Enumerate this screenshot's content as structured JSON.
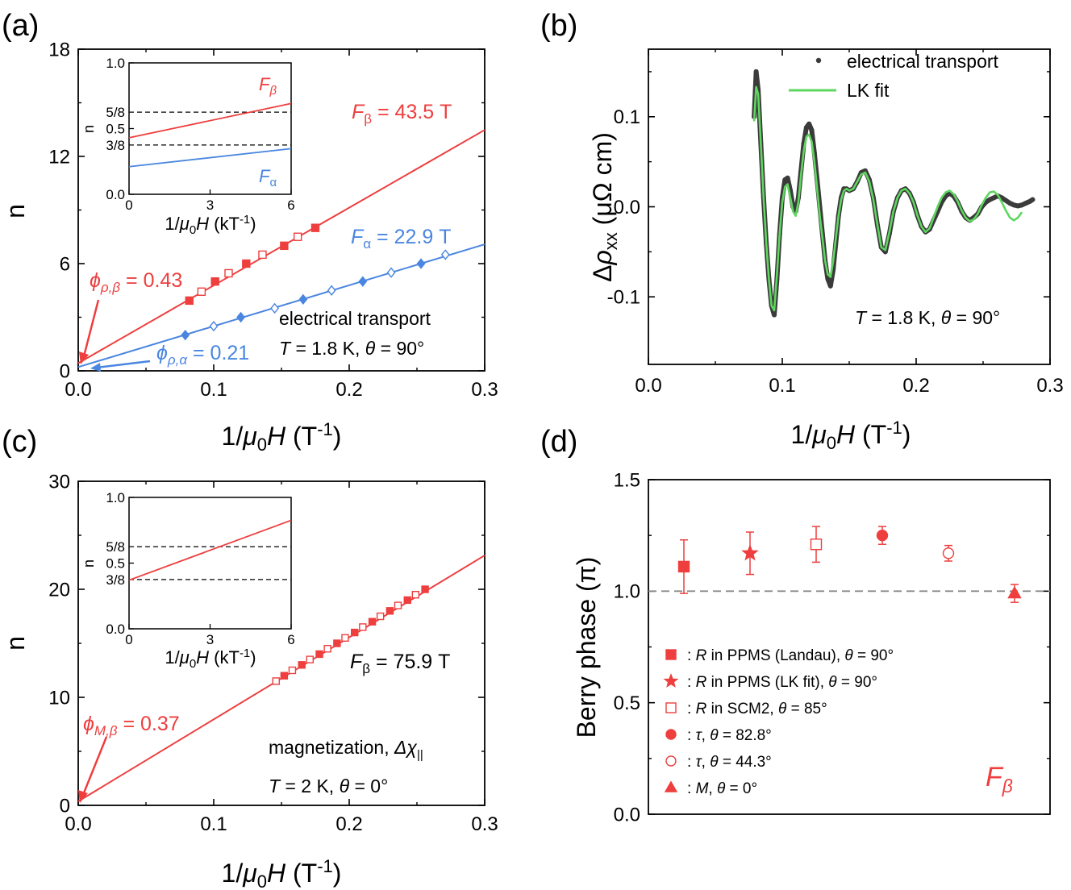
{
  "colors": {
    "red": "#ee3e3e",
    "blue": "#4a86e0",
    "green": "#5fd65f",
    "dark": "#3b3b3b",
    "axis": "#000000",
    "gray_dash": "#8a8a8a"
  },
  "chart_data": [
    {
      "panel_label": "(a)",
      "type": "scatter",
      "xlabel_prefix": "1/",
      "xlabel_mu": "μ",
      "xlabel_sub": "0",
      "xlabel_H": "H",
      "xlabel_unit": " (T",
      "xlabel_exp": "-1",
      "xlabel_close": ")",
      "ylabel": "n",
      "xlim": [
        0,
        0.3
      ],
      "ylim": [
        0,
        18
      ],
      "xticks": [
        "0.0",
        "0.1",
        "0.2",
        "0.3"
      ],
      "xtick_values": [
        0,
        0.1,
        0.2,
        0.3
      ],
      "yticks": [
        "0",
        "6",
        "12",
        "18"
      ],
      "ytick_values": [
        0,
        6,
        12,
        18
      ],
      "series": [
        {
          "name": "F_beta",
          "color": "#ee3e3e",
          "marker": "square",
          "points": [
            [
              0.082,
              3.93,
              true
            ],
            [
              0.091,
              4.43,
              false
            ],
            [
              0.101,
              5.0,
              true
            ],
            [
              0.111,
              5.46,
              false
            ],
            [
              0.124,
              6.0,
              true
            ],
            [
              0.136,
              6.5,
              false
            ],
            [
              0.152,
              7.0,
              true
            ],
            [
              0.162,
              7.5,
              false
            ],
            [
              0.175,
              8.0,
              true
            ]
          ],
          "fit": {
            "intercept": 0.43,
            "slope": 43.5
          }
        },
        {
          "name": "F_alpha",
          "color": "#4a86e0",
          "marker": "diamond",
          "points": [
            [
              0.079,
              2.0,
              true
            ],
            [
              0.1,
              2.5,
              false
            ],
            [
              0.12,
              3.0,
              true
            ],
            [
              0.145,
              3.5,
              false
            ],
            [
              0.166,
              4.0,
              true
            ],
            [
              0.187,
              4.5,
              false
            ],
            [
              0.21,
              5.0,
              true
            ],
            [
              0.231,
              5.5,
              false
            ],
            [
              0.253,
              6.0,
              true
            ],
            [
              0.271,
              6.5,
              false
            ]
          ],
          "fit": {
            "intercept": 0.21,
            "slope": 22.9
          }
        }
      ],
      "ann_fbeta": {
        "F": "F",
        "sub": "β",
        "rest": " = 43.5 T"
      },
      "ann_falpha": {
        "F": "F",
        "sub": "α",
        "rest": " = 22.9 T"
      },
      "ann_phibeta": {
        "phi": "ϕ",
        "sub": "ρ,β",
        "rest": " = 0.43"
      },
      "ann_phialpha": {
        "phi": "ϕ",
        "sub": "ρ,α",
        "rest": " = 0.21"
      },
      "ann_cond1": "electrical transport",
      "ann_cond2": {
        "T": "T",
        "mid": " = 1.8 K,  ",
        "theta": "θ",
        "end": " = 90°"
      },
      "inset": {
        "xlim": [
          0,
          6
        ],
        "ylim": [
          0,
          1
        ],
        "xticks": [
          "0",
          "3",
          "6"
        ],
        "xtick_values": [
          0,
          3,
          6
        ],
        "yticks": [
          "0.0",
          "0.5",
          "1.0"
        ],
        "ytick_values": [
          0,
          0.5,
          1.0
        ],
        "hlines": [
          {
            "label": "5/8",
            "value": 0.625
          },
          {
            "label": "3/8",
            "value": 0.375
          }
        ],
        "ylabel": "n",
        "xlabel_prefix": "1/",
        "xlabel_mu": "μ",
        "xlabel_sub": "0",
        "xlabel_H": "H",
        "xlabel_unit": " (kT",
        "xlabel_exp": "-1",
        "xlabel_close": ")",
        "lines": [
          {
            "name": "F_beta",
            "color": "#ee3e3e",
            "intercept": 0.43,
            "slope": 0.0435,
            "label_F": "F",
            "label_sub": "β"
          },
          {
            "name": "F_alpha",
            "color": "#4a86e0",
            "intercept": 0.21,
            "slope": 0.0229,
            "label_F": "F",
            "label_sub": "α"
          }
        ]
      }
    },
    {
      "panel_label": "(b)",
      "type": "line",
      "xlabel_prefix": "1/",
      "xlabel_mu": "μ",
      "xlabel_sub": "0",
      "xlabel_H": "H",
      "xlabel_unit": " (T",
      "xlabel_exp": "-1",
      "xlabel_close": ")",
      "ylabel_delta": "Δ",
      "ylabel_rho": "ρ",
      "ylabel_sub": "xx",
      "ylabel_unit": " (μΩ cm)",
      "xlim": [
        0,
        0.3
      ],
      "ylim": [
        -0.175,
        0.175
      ],
      "xticks": [
        "0.0",
        "0.1",
        "0.2",
        "0.3"
      ],
      "xtick_values": [
        0,
        0.1,
        0.2,
        0.3
      ],
      "yticks": [
        "-0.1",
        "0.0",
        "0.1"
      ],
      "ytick_values": [
        -0.1,
        0,
        0.1
      ],
      "series": [
        {
          "name": "electrical transport",
          "color": "#3b3b3b",
          "x": [
            0.079,
            0.0805,
            0.082,
            0.084,
            0.086,
            0.088,
            0.09,
            0.092,
            0.094,
            0.096,
            0.098,
            0.1,
            0.102,
            0.104,
            0.106,
            0.108,
            0.11,
            0.112,
            0.114,
            0.116,
            0.118,
            0.12,
            0.122,
            0.124,
            0.126,
            0.128,
            0.13,
            0.132,
            0.134,
            0.136,
            0.138,
            0.14,
            0.142,
            0.144,
            0.146,
            0.148,
            0.15,
            0.153,
            0.156,
            0.159,
            0.162,
            0.165,
            0.168,
            0.171,
            0.174,
            0.177,
            0.18,
            0.183,
            0.186,
            0.189,
            0.192,
            0.195,
            0.198,
            0.201,
            0.204,
            0.207,
            0.21,
            0.213,
            0.216,
            0.219,
            0.222,
            0.225,
            0.228,
            0.231,
            0.234,
            0.237,
            0.24,
            0.243,
            0.246,
            0.249,
            0.252,
            0.255,
            0.258,
            0.261,
            0.264,
            0.267,
            0.27,
            0.273,
            0.276,
            0.279,
            0.282,
            0.285,
            0.287
          ],
          "y": [
            0.1,
            0.15,
            0.13,
            0.07,
            0.01,
            -0.04,
            -0.08,
            -0.11,
            -0.12,
            -0.08,
            -0.03,
            0.01,
            0.03,
            0.032,
            0.018,
            0.0,
            -0.005,
            0.01,
            0.04,
            0.07,
            0.088,
            0.092,
            0.085,
            0.06,
            0.03,
            0.0,
            -0.03,
            -0.06,
            -0.08,
            -0.088,
            -0.07,
            -0.04,
            -0.01,
            0.01,
            0.02,
            0.02,
            0.018,
            0.02,
            0.028,
            0.038,
            0.04,
            0.03,
            0.01,
            -0.02,
            -0.045,
            -0.05,
            -0.03,
            -0.005,
            0.01,
            0.018,
            0.02,
            0.015,
            0.005,
            -0.01,
            -0.022,
            -0.028,
            -0.025,
            -0.015,
            -0.005,
            0.005,
            0.012,
            0.015,
            0.012,
            0.005,
            -0.005,
            -0.012,
            -0.015,
            -0.012,
            -0.008,
            0.0,
            0.005,
            0.008,
            0.01,
            0.012,
            0.01,
            0.007,
            0.004,
            0.002,
            0.001,
            0.002,
            0.004,
            0.006,
            0.008
          ]
        },
        {
          "name": "LK fit",
          "color": "#5fd65f",
          "x": [
            0.079,
            0.0805,
            0.082,
            0.084,
            0.086,
            0.088,
            0.09,
            0.092,
            0.094,
            0.096,
            0.098,
            0.1,
            0.102,
            0.104,
            0.106,
            0.108,
            0.11,
            0.112,
            0.114,
            0.116,
            0.118,
            0.12,
            0.122,
            0.124,
            0.126,
            0.128,
            0.13,
            0.132,
            0.134,
            0.136,
            0.138,
            0.14,
            0.142,
            0.144,
            0.146,
            0.148,
            0.15,
            0.153,
            0.156,
            0.159,
            0.162,
            0.165,
            0.168,
            0.171,
            0.174,
            0.177,
            0.18,
            0.183,
            0.186,
            0.189,
            0.192,
            0.195,
            0.198,
            0.201,
            0.204,
            0.207,
            0.21,
            0.213,
            0.216,
            0.219,
            0.222,
            0.225,
            0.228,
            0.231,
            0.234,
            0.237,
            0.24,
            0.243,
            0.246,
            0.249,
            0.252,
            0.255,
            0.258,
            0.261,
            0.264,
            0.267,
            0.27,
            0.273,
            0.276,
            0.279
          ],
          "y": [
            0.095,
            0.133,
            0.125,
            0.07,
            0.01,
            -0.04,
            -0.08,
            -0.11,
            -0.115,
            -0.075,
            -0.03,
            0.005,
            0.022,
            0.025,
            0.01,
            -0.005,
            -0.01,
            0.005,
            0.035,
            0.062,
            0.078,
            0.08,
            0.072,
            0.05,
            0.02,
            -0.01,
            -0.035,
            -0.06,
            -0.075,
            -0.078,
            -0.06,
            -0.035,
            -0.01,
            0.008,
            0.018,
            0.02,
            0.018,
            0.02,
            0.028,
            0.036,
            0.038,
            0.028,
            0.008,
            -0.02,
            -0.045,
            -0.048,
            -0.028,
            -0.005,
            0.01,
            0.018,
            0.02,
            0.015,
            0.005,
            -0.01,
            -0.022,
            -0.028,
            -0.024,
            -0.012,
            0.0,
            0.01,
            0.016,
            0.018,
            0.014,
            0.006,
            -0.004,
            -0.012,
            -0.016,
            -0.014,
            -0.008,
            0.002,
            0.01,
            0.016,
            0.017,
            0.013,
            0.005,
            -0.004,
            -0.012,
            -0.015,
            -0.012,
            -0.006
          ]
        }
      ],
      "legend": [
        {
          "label": "electrical transport",
          "style": "dot"
        },
        {
          "label": "LK fit",
          "style": "line"
        }
      ],
      "ann_cond": {
        "T": "T",
        "mid": " = 1.8 K,  ",
        "theta": "θ",
        "end": " = 90°"
      }
    },
    {
      "panel_label": "(c)",
      "type": "scatter",
      "xlabel_prefix": "1/",
      "xlabel_mu": "μ",
      "xlabel_sub": "0",
      "xlabel_H": "H",
      "xlabel_unit": " (T",
      "xlabel_exp": "-1",
      "xlabel_close": ")",
      "ylabel": "n",
      "xlim": [
        0,
        0.3
      ],
      "ylim": [
        0,
        30
      ],
      "xticks": [
        "0.0",
        "0.1",
        "0.2",
        "0.3"
      ],
      "xtick_values": [
        0,
        0.1,
        0.2,
        0.3
      ],
      "yticks": [
        "0",
        "10",
        "20",
        "30"
      ],
      "ytick_values": [
        0,
        10,
        20,
        30
      ],
      "series": [
        {
          "name": "F_beta",
          "color": "#ee3e3e",
          "marker": "square",
          "points": [
            [
              0.146,
              11.5,
              false
            ],
            [
              0.152,
              12.0,
              true
            ],
            [
              0.158,
              12.5,
              false
            ],
            [
              0.165,
              13.0,
              true
            ],
            [
              0.171,
              13.5,
              false
            ],
            [
              0.178,
              14.0,
              true
            ],
            [
              0.184,
              14.5,
              false
            ],
            [
              0.191,
              15.0,
              true
            ],
            [
              0.197,
              15.5,
              false
            ],
            [
              0.204,
              16.0,
              true
            ],
            [
              0.21,
              16.5,
              false
            ],
            [
              0.217,
              17.0,
              true
            ],
            [
              0.223,
              17.5,
              false
            ],
            [
              0.23,
              18.0,
              true
            ],
            [
              0.236,
              18.5,
              false
            ],
            [
              0.243,
              19.0,
              true
            ],
            [
              0.249,
              19.5,
              false
            ],
            [
              0.256,
              20.0,
              true
            ]
          ],
          "fit": {
            "intercept": 0.37,
            "slope": 75.9
          }
        }
      ],
      "ann_fbeta": {
        "F": "F",
        "sub": "β",
        "rest": " = 75.9 T"
      },
      "ann_phi": {
        "phi": "ϕ",
        "sub": "M,β",
        "rest": " = 0.37"
      },
      "ann_cond1": {
        "text": "magnetization,  ",
        "sym": "Δχ",
        "sub": "||"
      },
      "ann_cond2": {
        "T": "T",
        "mid": " = 2 K,  ",
        "theta": "θ",
        "end": " = 0°"
      },
      "inset": {
        "xlim": [
          0,
          6
        ],
        "ylim": [
          0,
          1
        ],
        "xticks": [
          "0",
          "3",
          "6"
        ],
        "xtick_values": [
          0,
          3,
          6
        ],
        "yticks": [
          "0.0",
          "0.5",
          "1.0"
        ],
        "ytick_values": [
          0,
          0.5,
          1.0
        ],
        "hlines": [
          {
            "label": "5/8",
            "value": 0.625
          },
          {
            "label": "3/8",
            "value": 0.375
          }
        ],
        "ylabel": "n",
        "xlabel_prefix": "1/",
        "xlabel_mu": "μ",
        "xlabel_sub": "0",
        "xlabel_H": "H",
        "xlabel_unit": " (kT",
        "xlabel_exp": "-1",
        "xlabel_close": ")",
        "lines": [
          {
            "name": "F_beta",
            "color": "#ee3e3e",
            "intercept": 0.37,
            "slope": 0.0759
          }
        ]
      }
    },
    {
      "panel_label": "(d)",
      "type": "scatter",
      "ylabel": "Berry phase (π)",
      "ylim": [
        0,
        1.5
      ],
      "yticks": [
        "0.0",
        "0.5",
        "1.0",
        "1.5"
      ],
      "ytick_values": [
        0,
        0.5,
        1.0,
        1.5
      ],
      "reference_line": 1.0,
      "points": [
        {
          "value": 1.11,
          "err": 0.12,
          "marker": "square",
          "filled": true,
          "legend_pre": ": ",
          "legend_var": "R",
          "legend_mid": " in PPMS (Landau), ",
          "legend_theta": "θ",
          "legend_end": " = 90°"
        },
        {
          "value": 1.17,
          "err": 0.095,
          "marker": "star",
          "filled": true,
          "legend_pre": ": ",
          "legend_var": "R",
          "legend_mid": " in PPMS (LK fit), ",
          "legend_theta": "θ",
          "legend_end": " = 90°"
        },
        {
          "value": 1.21,
          "err": 0.08,
          "marker": "square",
          "filled": false,
          "legend_pre": ": ",
          "legend_var": "R",
          "legend_mid": " in SCM2, ",
          "legend_theta": "θ",
          "legend_end": " = 85°"
        },
        {
          "value": 1.25,
          "err": 0.04,
          "marker": "circle",
          "filled": true,
          "legend_pre": ": ",
          "legend_var": "τ",
          "legend_mid": ",  ",
          "legend_theta": "θ",
          "legend_end": " = 82.8°"
        },
        {
          "value": 1.17,
          "err": 0.035,
          "marker": "circle",
          "filled": false,
          "legend_pre": ": ",
          "legend_var": "τ",
          "legend_mid": ",  ",
          "legend_theta": "θ",
          "legend_end": " = 44.3°"
        },
        {
          "value": 0.99,
          "err": 0.04,
          "marker": "triangle",
          "filled": true,
          "legend_pre": ": ",
          "legend_var": "M",
          "legend_mid": ",  ",
          "legend_theta": "θ",
          "legend_end": " = 0°"
        }
      ],
      "ann_F": {
        "F": "F",
        "sub": "β"
      }
    }
  ]
}
